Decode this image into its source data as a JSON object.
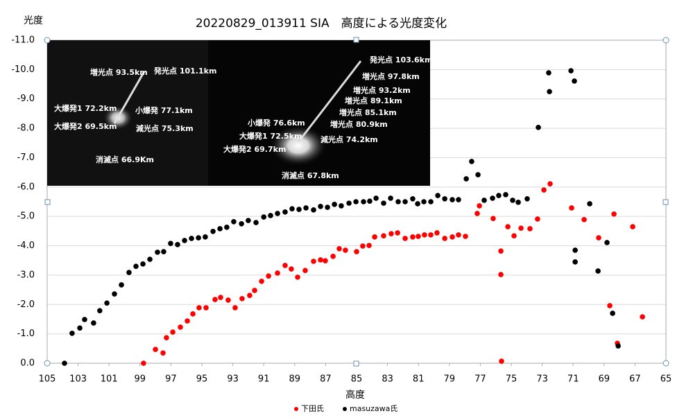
{
  "chart_data": {
    "type": "scatter",
    "title": "20220829_013911  SIA　高度による光度変化",
    "y_label": "光度",
    "x_label": "高度",
    "xlim": [
      105,
      65
    ],
    "ylim": [
      0,
      -11
    ],
    "xticks": [
      105,
      103,
      101,
      99,
      97,
      95,
      93,
      91,
      89,
      87,
      85,
      83,
      81,
      79,
      77,
      75,
      73,
      71,
      69,
      67,
      65
    ],
    "yticks": [
      {
        "value": -11,
        "label": "-11.0"
      },
      {
        "value": -10,
        "label": "-10.0"
      },
      {
        "value": -9,
        "label": "-9.0"
      },
      {
        "value": -8,
        "label": "-8.0"
      },
      {
        "value": -7,
        "label": "-7.0"
      },
      {
        "value": -6,
        "label": "-6.0"
      },
      {
        "value": -5,
        "label": "-5.0"
      },
      {
        "value": -4,
        "label": "-4.0"
      },
      {
        "value": -3,
        "label": "-3.0"
      },
      {
        "value": -2,
        "label": "-2.0"
      },
      {
        "value": -1,
        "label": "-1.0"
      },
      {
        "value": 0,
        "label": "0.0"
      }
    ],
    "grid": true,
    "series": [
      {
        "name": "下田氏",
        "color": "#ff0000",
        "x": [
          98.77,
          98.0,
          97.51,
          97.29,
          96.88,
          96.39,
          95.94,
          95.58,
          95.18,
          94.73,
          94.15,
          93.79,
          93.3,
          92.85,
          92.4,
          91.91,
          91.59,
          91.14,
          90.69,
          90.11,
          89.62,
          89.22,
          88.81,
          88.32,
          87.78,
          87.33,
          87.02,
          86.52,
          86.12,
          85.72,
          85.0,
          84.6,
          84.19,
          83.83,
          83.25,
          82.76,
          82.35,
          81.86,
          81.37,
          81.01,
          80.61,
          80.2,
          79.8,
          79.3,
          78.81,
          78.41,
          77.96,
          77.2,
          77.06,
          76.17,
          75.67,
          75.67,
          75.63,
          75.22,
          74.82,
          74.37,
          73.79,
          73.3,
          72.89,
          72.49,
          71.1,
          70.29,
          69.35,
          68.63,
          68.36,
          68.14,
          67.15,
          66.52
        ],
        "values": [
          0.0,
          -0.47,
          -0.35,
          -0.87,
          -1.06,
          -1.23,
          -1.44,
          -1.68,
          -1.89,
          -1.89,
          -2.17,
          -2.24,
          -2.15,
          -1.89,
          -2.2,
          -2.31,
          -2.48,
          -2.79,
          -2.97,
          -3.07,
          -3.33,
          -3.21,
          -2.93,
          -3.16,
          -3.47,
          -3.52,
          -3.49,
          -3.64,
          -3.9,
          -3.85,
          -3.8,
          -3.99,
          -4.01,
          -4.3,
          -4.34,
          -4.41,
          -4.44,
          -4.25,
          -4.3,
          -4.32,
          -4.37,
          -4.37,
          -4.44,
          -4.25,
          -4.3,
          -4.37,
          -4.32,
          -5.1,
          -5.36,
          -4.93,
          -3.82,
          -3.02,
          -0.07,
          -4.65,
          -4.34,
          -4.6,
          -4.58,
          -4.91,
          -5.9,
          -6.11,
          -5.29,
          -4.89,
          -4.27,
          -1.96,
          -5.08,
          -0.68,
          -4.65,
          -1.58
        ]
      },
      {
        "name": "masuzawa氏",
        "color": "#000000",
        "x": [
          103.88,
          103.39,
          102.89,
          102.58,
          102.0,
          101.6,
          101.14,
          100.65,
          100.2,
          99.71,
          99.26,
          98.81,
          98.36,
          97.87,
          97.47,
          97.02,
          96.57,
          96.12,
          95.67,
          95.22,
          94.78,
          94.28,
          93.83,
          93.39,
          92.94,
          92.44,
          92.0,
          91.5,
          91.0,
          90.56,
          90.11,
          89.62,
          89.17,
          88.72,
          88.27,
          87.78,
          87.33,
          86.88,
          86.43,
          85.99,
          85.49,
          85.04,
          84.55,
          84.15,
          83.74,
          83.25,
          82.8,
          82.31,
          81.86,
          81.37,
          81.05,
          80.65,
          80.2,
          79.75,
          79.3,
          78.81,
          78.41,
          77.91,
          77.56,
          77.15,
          76.75,
          76.21,
          75.81,
          75.36,
          74.91,
          74.55,
          73.97,
          73.25,
          72.58,
          72.53,
          71.14,
          70.92,
          70.87,
          70.87,
          69.93,
          69.39,
          68.81,
          68.45,
          68.09
        ],
        "values": [
          0.0,
          -1.02,
          -1.2,
          -1.49,
          -1.37,
          -1.79,
          -2.05,
          -2.36,
          -2.67,
          -3.09,
          -3.3,
          -3.38,
          -3.54,
          -3.78,
          -3.8,
          -4.08,
          -4.04,
          -4.18,
          -4.25,
          -4.27,
          -4.3,
          -4.49,
          -4.58,
          -4.63,
          -4.82,
          -4.75,
          -4.86,
          -4.79,
          -4.98,
          -5.03,
          -5.1,
          -5.15,
          -5.26,
          -5.24,
          -5.29,
          -5.22,
          -5.34,
          -5.31,
          -5.41,
          -5.36,
          -5.45,
          -5.5,
          -5.5,
          -5.52,
          -5.62,
          -5.45,
          -5.62,
          -5.5,
          -5.5,
          -5.6,
          -5.43,
          -5.5,
          -5.5,
          -5.71,
          -5.6,
          -5.57,
          -5.57,
          -6.28,
          -6.87,
          -6.42,
          -5.55,
          -5.62,
          -5.71,
          -5.74,
          -5.55,
          -5.48,
          -5.6,
          -8.03,
          -9.89,
          -9.25,
          -9.96,
          -9.61,
          -3.85,
          -3.45,
          -5.43,
          -3.14,
          -4.11,
          -1.7,
          -0.59
        ]
      }
    ],
    "inset_left_labels": [
      "増光点  93.5km",
      "発光点  101.1km",
      "大爆発1  72.2km",
      "小爆発  77.1km",
      "大爆発2  69.5km",
      "減光点  75.3km",
      "消滅点  66.9Km"
    ],
    "inset_right_labels": [
      "発光点  103.6km",
      "増光点  97.8km",
      "増光点  93.2km",
      "増光点  89.1km",
      "増光点  85.1km",
      "増光点  80.9km",
      "小爆発  76.6km",
      "大爆発1  72.5km",
      "減光点  74.2km",
      "大爆発2  69.7km",
      "消滅点  67.8km"
    ]
  }
}
